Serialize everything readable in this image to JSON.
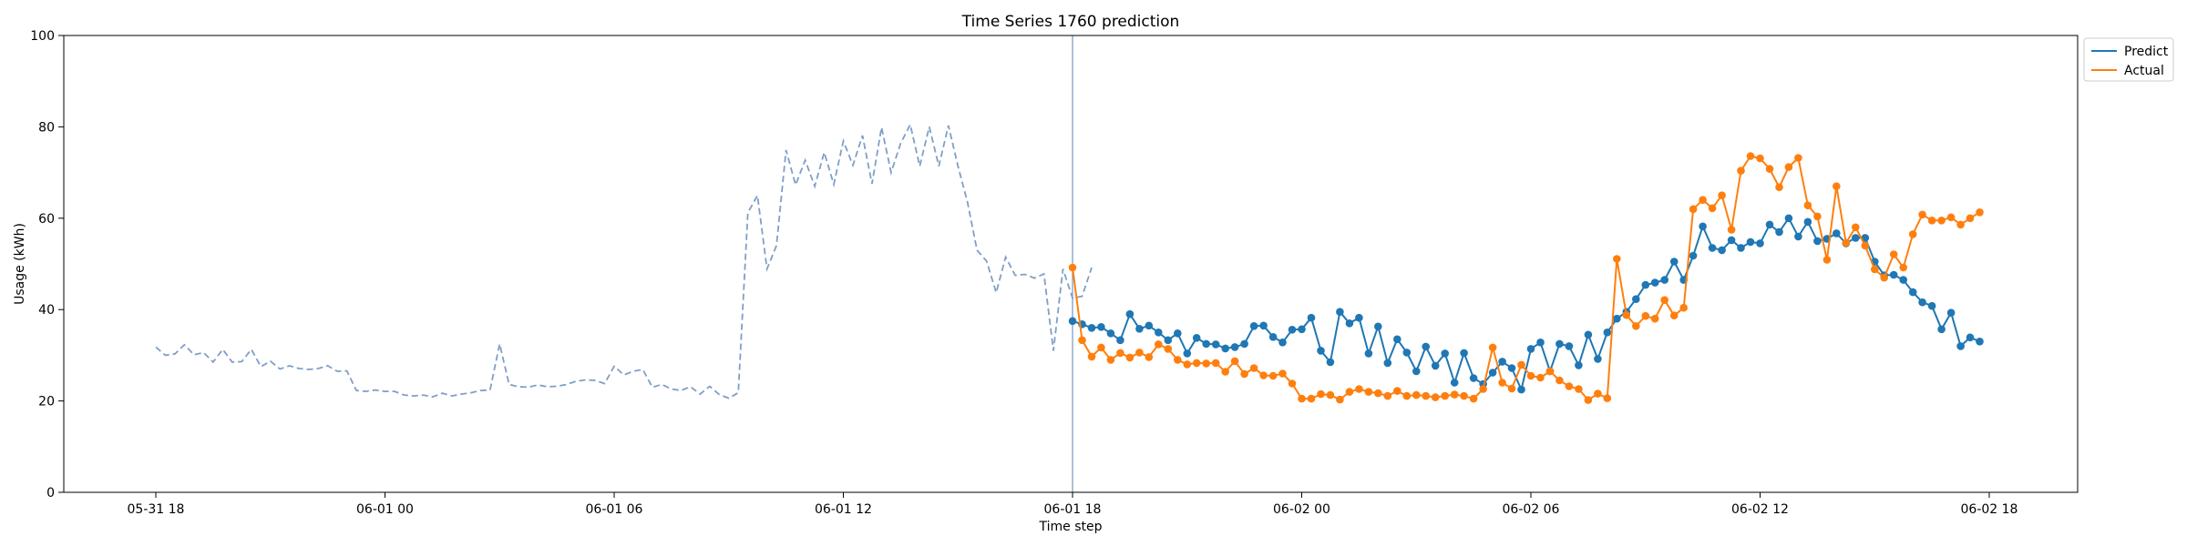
{
  "chart_data": {
    "type": "line",
    "title": "Time Series 1760 prediction",
    "xlabel": "Time step",
    "ylabel": "Usage (kWh)",
    "ylim": [
      0,
      100
    ],
    "yticks": [
      0,
      20,
      40,
      60,
      80,
      100
    ],
    "x_start": "2024-05-31T18:00",
    "x_end": "2024-06-02T18:00",
    "xticks": [
      {
        "t": "2024-05-31T18:00",
        "label": "05-31 18"
      },
      {
        "t": "2024-06-01T00:00",
        "label": "06-01 00"
      },
      {
        "t": "2024-06-01T06:00",
        "label": "06-01 06"
      },
      {
        "t": "2024-06-01T12:00",
        "label": "06-01 12"
      },
      {
        "t": "2024-06-01T18:00",
        "label": "06-01 18"
      },
      {
        "t": "2024-06-02T00:00",
        "label": "06-02 00"
      },
      {
        "t": "2024-06-02T06:00",
        "label": "06-02 06"
      },
      {
        "t": "2024-06-02T12:00",
        "label": "06-02 12"
      },
      {
        "t": "2024-06-02T18:00",
        "label": "06-02 18"
      }
    ],
    "interval_minutes": 15,
    "vline": "2024-06-01T18:00",
    "legend_position": "top-right",
    "history": {
      "start": "2024-05-31T18:00",
      "color": "#7f9fc7",
      "style": "dashed",
      "values": [
        31.8,
        30.0,
        30.3,
        32.3,
        30.1,
        30.6,
        28.5,
        31.3,
        28.5,
        28.6,
        31.3,
        27.5,
        28.7,
        27.0,
        27.7,
        27.1,
        26.9,
        27.1,
        27.7,
        26.5,
        26.6,
        22.3,
        22.1,
        22.4,
        22.1,
        22.1,
        21.3,
        21.1,
        21.3,
        20.9,
        21.7,
        21.1,
        21.5,
        21.8,
        22.3,
        22.4,
        32.5,
        23.6,
        23.1,
        23.0,
        23.5,
        23.1,
        23.2,
        23.6,
        24.3,
        24.6,
        24.5,
        23.8,
        27.6,
        25.7,
        26.5,
        26.9,
        23.0,
        23.6,
        22.6,
        22.3,
        23.1,
        21.5,
        23.2,
        21.4,
        20.6,
        21.8,
        61.2,
        65.0,
        48.9,
        54.0,
        74.9,
        67.3,
        72.7,
        67.0,
        74.4,
        67.4,
        76.9,
        71.6,
        78.1,
        67.5,
        79.9,
        70.0,
        76.4,
        80.5,
        71.4,
        80.0,
        71.4,
        80.3,
        71.4,
        63.5,
        53.0,
        50.6,
        43.7,
        51.5,
        47.5,
        47.7,
        46.9,
        47.8,
        31.0,
        48.9,
        42.5,
        42.9,
        49.2
      ]
    },
    "series": [
      {
        "name": "Predict",
        "color": "#1f77b4",
        "start": "2024-06-01T18:00",
        "values": [
          37.5,
          36.8,
          36.0,
          36.2,
          34.8,
          33.3,
          39.0,
          35.8,
          36.5,
          35.0,
          33.3,
          34.8,
          30.4,
          33.8,
          32.5,
          32.4,
          31.5,
          31.8,
          32.5,
          36.4,
          36.5,
          34.0,
          32.8,
          35.6,
          35.7,
          38.2,
          31.0,
          28.5,
          39.5,
          37.0,
          38.2,
          30.4,
          36.3,
          28.3,
          33.5,
          30.6,
          26.5,
          31.9,
          27.7,
          30.4,
          24.0,
          30.5,
          25.0,
          23.7,
          26.2,
          28.6,
          27.2,
          22.5,
          31.4,
          32.8,
          26.5,
          32.5,
          32.0,
          27.8,
          34.5,
          29.2,
          35.0,
          38.0,
          39.5,
          42.3,
          45.4,
          45.9,
          46.5,
          50.5,
          46.5,
          51.8,
          58.2,
          53.5,
          53.0,
          55.2,
          53.5,
          54.8,
          54.5,
          58.6,
          57.0,
          60.0,
          56.0,
          59.2,
          55.0,
          55.5,
          56.7,
          54.5,
          55.7,
          55.7,
          50.5,
          47.5,
          47.6,
          46.5,
          43.8,
          41.6,
          40.8,
          35.7,
          39.3,
          32.0,
          33.9,
          33.0
        ]
      },
      {
        "name": "Actual",
        "color": "#ff7f0e",
        "start": "2024-06-01T18:00",
        "values": [
          49.2,
          33.3,
          29.7,
          31.7,
          29.0,
          30.5,
          29.5,
          30.6,
          29.6,
          32.4,
          31.4,
          29.0,
          28.0,
          28.3,
          28.2,
          28.3,
          26.4,
          28.7,
          25.9,
          27.2,
          25.6,
          25.5,
          26.0,
          23.8,
          20.5,
          20.5,
          21.5,
          21.3,
          20.3,
          22.0,
          22.6,
          22.0,
          21.7,
          21.1,
          22.2,
          21.1,
          21.3,
          21.1,
          20.8,
          21.1,
          21.4,
          21.1,
          20.5,
          22.6,
          31.7,
          24.0,
          22.7,
          27.9,
          25.5,
          25.1,
          26.5,
          24.5,
          23.2,
          22.6,
          20.2,
          21.6,
          20.6,
          51.1,
          38.8,
          36.4,
          38.6,
          38.0,
          42.1,
          38.7,
          40.4,
          62.0,
          64.0,
          62.2,
          65.0,
          57.5,
          70.4,
          73.6,
          73.1,
          70.8,
          66.8,
          71.2,
          73.2,
          62.8,
          60.4,
          50.9,
          67.0,
          54.6,
          58.0,
          54.0,
          48.8,
          47.0,
          52.1,
          49.2,
          56.5,
          60.8,
          59.5,
          59.5,
          60.2,
          58.6,
          60.0,
          61.3
        ]
      }
    ]
  }
}
